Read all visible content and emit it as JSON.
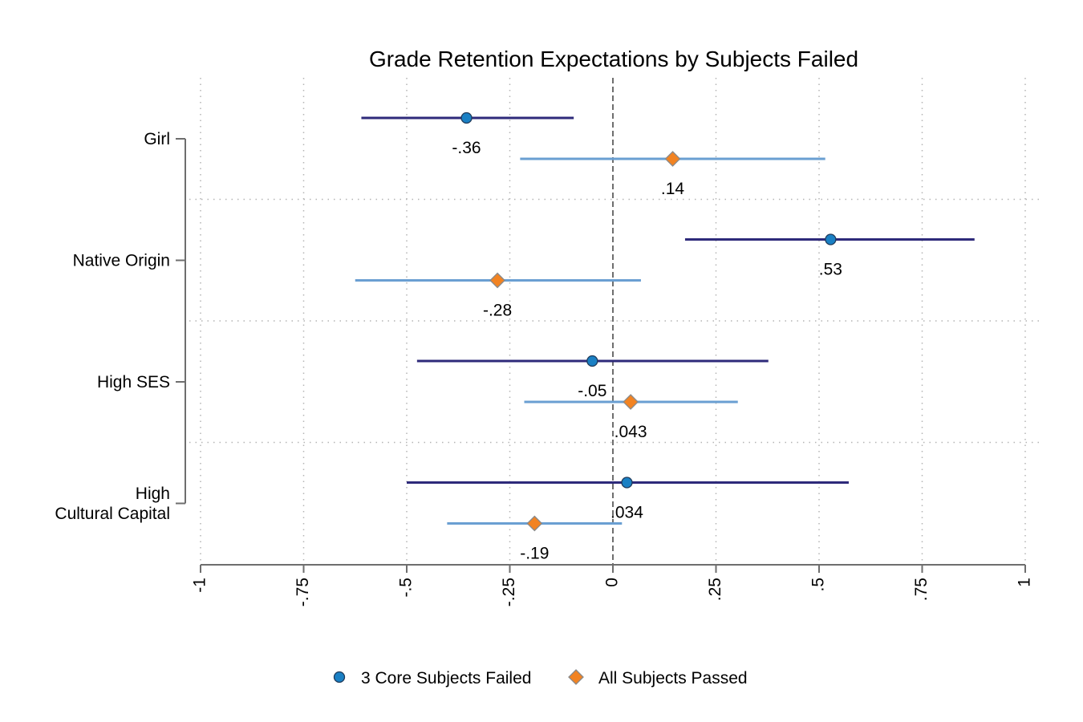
{
  "chart_data": {
    "type": "scatter",
    "subtype": "coefficient-plot",
    "title": "Grade Retention Expectations by Subjects Failed",
    "xlabel": "",
    "ylabel": "",
    "xlim": [
      -1,
      1
    ],
    "x_ticks": [
      -1,
      -0.75,
      -0.5,
      -0.25,
      0,
      0.25,
      0.5,
      0.75,
      1
    ],
    "x_tick_labels": [
      "-1",
      "-.75",
      "-.5",
      "-.25",
      "0",
      ".25",
      ".5",
      ".75",
      "1"
    ],
    "grid": true,
    "reference_line": 0,
    "categories": [
      {
        "label_lines": [
          "Girl"
        ]
      },
      {
        "label_lines": [
          "Native Origin"
        ]
      },
      {
        "label_lines": [
          "High SES"
        ]
      },
      {
        "label_lines": [
          "High",
          "Cultural Capital"
        ]
      }
    ],
    "series": [
      {
        "name": "3 Core Subjects Failed",
        "marker": "circle",
        "marker_color": "#1a80c4",
        "line_color": "#2e2a7a",
        "points": [
          {
            "value": -0.355,
            "ci": [
              -0.61,
              -0.095
            ],
            "label": "-.36"
          },
          {
            "value": 0.528,
            "ci": [
              0.175,
              0.877
            ],
            "label": ".53"
          },
          {
            "value": -0.05,
            "ci": [
              -0.475,
              0.377
            ],
            "label": "-.05"
          },
          {
            "value": 0.034,
            "ci": [
              -0.5,
              0.572
            ],
            "label": ".034"
          }
        ]
      },
      {
        "name": "All Subjects Passed",
        "marker": "diamond",
        "marker_color": "#f28322",
        "line_color": "#6a9fd2",
        "points": [
          {
            "value": 0.145,
            "ci": [
              -0.225,
              0.515
            ],
            "label": ".14"
          },
          {
            "value": -0.28,
            "ci": [
              -0.625,
              0.068
            ],
            "label": "-.28"
          },
          {
            "value": 0.043,
            "ci": [
              -0.215,
              0.303
            ],
            "label": ".043"
          },
          {
            "value": -0.19,
            "ci": [
              -0.402,
              0.022
            ],
            "label": "-.19"
          }
        ]
      }
    ],
    "legend": {
      "position": "bottom"
    }
  }
}
